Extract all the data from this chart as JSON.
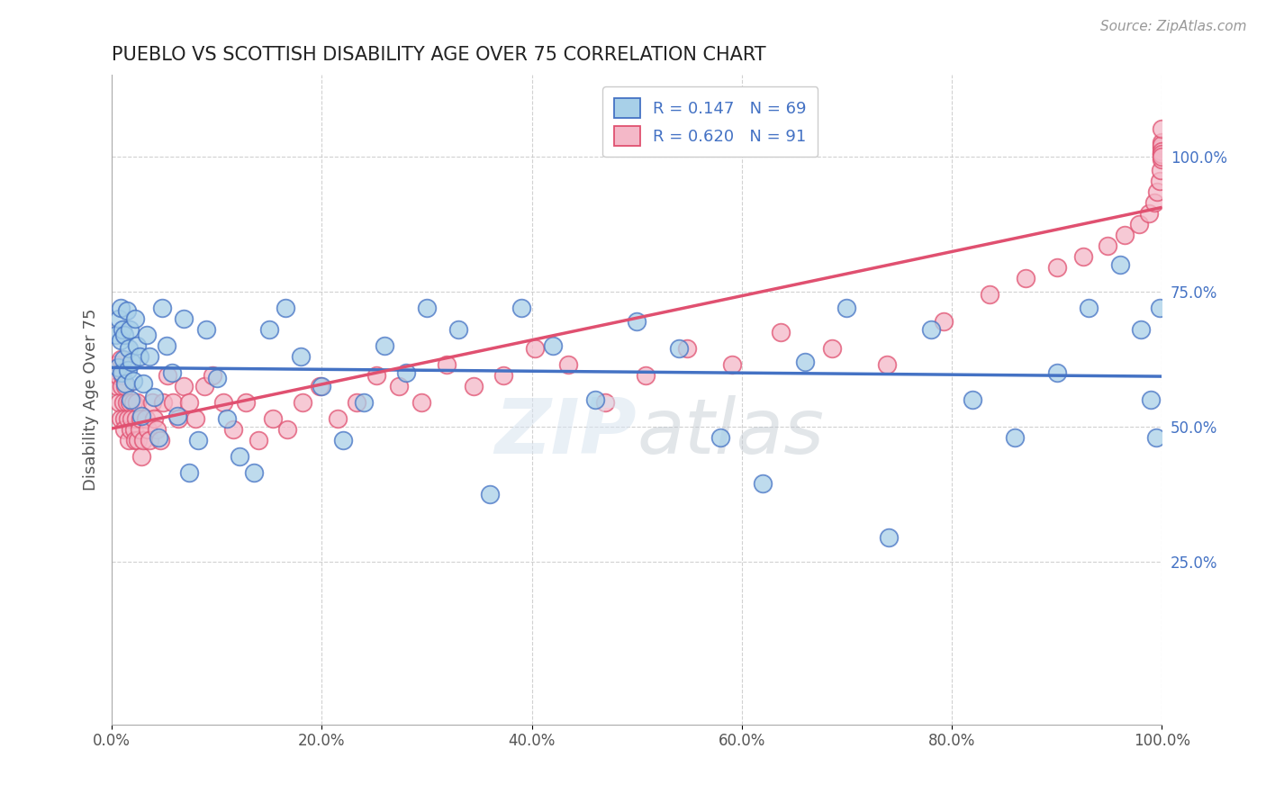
{
  "title": "PUEBLO VS SCOTTISH DISABILITY AGE OVER 75 CORRELATION CHART",
  "source_text": "Source: ZipAtlas.com",
  "ylabel": "Disability Age Over 75",
  "pueblo_R": 0.147,
  "pueblo_N": 69,
  "scottish_R": 0.62,
  "scottish_N": 91,
  "pueblo_color": "#a8d0e8",
  "scottish_color": "#f4b8c8",
  "pueblo_edge_color": "#4472c4",
  "scottish_edge_color": "#e05070",
  "pueblo_line_color": "#4472c4",
  "scottish_line_color": "#e05070",
  "background_color": "#ffffff",
  "grid_color": "#cccccc",
  "xlim": [
    0.0,
    1.0
  ],
  "ylim_min": -0.05,
  "ylim_max": 1.15,
  "ytick_positions": [
    0.25,
    0.5,
    0.75,
    1.0
  ],
  "ytick_labels": [
    "25.0%",
    "50.0%",
    "75.0%",
    "100.0%"
  ],
  "xtick_positions": [
    0.0,
    0.2,
    0.4,
    0.6,
    0.8,
    1.0
  ],
  "xtick_labels": [
    "0.0%",
    "20.0%",
    "40.0%",
    "60.0%",
    "80.0%",
    "100.0%"
  ],
  "pueblo_x": [
    0.004,
    0.006,
    0.007,
    0.008,
    0.008,
    0.009,
    0.01,
    0.011,
    0.012,
    0.013,
    0.014,
    0.015,
    0.016,
    0.017,
    0.018,
    0.019,
    0.02,
    0.022,
    0.024,
    0.026,
    0.028,
    0.03,
    0.033,
    0.036,
    0.04,
    0.044,
    0.048,
    0.052,
    0.057,
    0.062,
    0.068,
    0.074,
    0.082,
    0.09,
    0.1,
    0.11,
    0.122,
    0.135,
    0.15,
    0.165,
    0.18,
    0.2,
    0.22,
    0.24,
    0.26,
    0.28,
    0.3,
    0.33,
    0.36,
    0.39,
    0.42,
    0.46,
    0.5,
    0.54,
    0.58,
    0.62,
    0.66,
    0.7,
    0.74,
    0.78,
    0.82,
    0.86,
    0.9,
    0.93,
    0.96,
    0.98,
    0.99,
    0.995,
    0.998
  ],
  "pueblo_y": [
    0.67,
    0.61,
    0.7,
    0.72,
    0.66,
    0.6,
    0.68,
    0.625,
    0.67,
    0.58,
    0.715,
    0.605,
    0.645,
    0.68,
    0.55,
    0.62,
    0.585,
    0.7,
    0.65,
    0.63,
    0.52,
    0.58,
    0.67,
    0.63,
    0.555,
    0.48,
    0.72,
    0.65,
    0.6,
    0.52,
    0.7,
    0.415,
    0.475,
    0.68,
    0.59,
    0.515,
    0.445,
    0.415,
    0.68,
    0.72,
    0.63,
    0.575,
    0.475,
    0.545,
    0.65,
    0.6,
    0.72,
    0.68,
    0.375,
    0.72,
    0.65,
    0.55,
    0.695,
    0.645,
    0.48,
    0.395,
    0.62,
    0.72,
    0.295,
    0.68,
    0.55,
    0.48,
    0.6,
    0.72,
    0.8,
    0.68,
    0.55,
    0.48,
    0.72
  ],
  "scottish_x": [
    0.004,
    0.005,
    0.006,
    0.007,
    0.008,
    0.008,
    0.009,
    0.01,
    0.011,
    0.012,
    0.012,
    0.013,
    0.014,
    0.015,
    0.016,
    0.017,
    0.018,
    0.019,
    0.02,
    0.021,
    0.022,
    0.023,
    0.024,
    0.025,
    0.026,
    0.027,
    0.028,
    0.03,
    0.032,
    0.034,
    0.036,
    0.038,
    0.04,
    0.043,
    0.046,
    0.049,
    0.053,
    0.058,
    0.063,
    0.068,
    0.074,
    0.08,
    0.088,
    0.096,
    0.106,
    0.116,
    0.128,
    0.14,
    0.153,
    0.167,
    0.182,
    0.198,
    0.215,
    0.233,
    0.252,
    0.273,
    0.295,
    0.319,
    0.345,
    0.373,
    0.403,
    0.435,
    0.47,
    0.508,
    0.548,
    0.591,
    0.637,
    0.686,
    0.738,
    0.792,
    0.836,
    0.87,
    0.9,
    0.925,
    0.948,
    0.965,
    0.978,
    0.988,
    0.993,
    0.996,
    0.998,
    0.999,
    1.0,
    1.0,
    1.0,
    1.0,
    1.0,
    1.0,
    1.0,
    1.0,
    1.0
  ],
  "scottish_y": [
    0.615,
    0.575,
    0.595,
    0.545,
    0.515,
    0.625,
    0.575,
    0.595,
    0.545,
    0.515,
    0.495,
    0.575,
    0.545,
    0.515,
    0.475,
    0.545,
    0.495,
    0.515,
    0.545,
    0.495,
    0.475,
    0.515,
    0.545,
    0.475,
    0.495,
    0.515,
    0.445,
    0.475,
    0.515,
    0.495,
    0.475,
    0.545,
    0.515,
    0.495,
    0.475,
    0.545,
    0.595,
    0.545,
    0.515,
    0.575,
    0.545,
    0.515,
    0.575,
    0.595,
    0.545,
    0.495,
    0.545,
    0.475,
    0.515,
    0.495,
    0.545,
    0.575,
    0.515,
    0.545,
    0.595,
    0.575,
    0.545,
    0.615,
    0.575,
    0.595,
    0.645,
    0.615,
    0.545,
    0.595,
    0.645,
    0.615,
    0.675,
    0.645,
    0.615,
    0.695,
    0.745,
    0.775,
    0.795,
    0.815,
    0.835,
    0.855,
    0.875,
    0.895,
    0.915,
    0.935,
    0.955,
    0.975,
    0.995,
    1.005,
    1.015,
    1.025,
    1.02,
    1.01,
    1.005,
    1.0,
    1.05
  ],
  "marker_size": 200,
  "line_width": 2.5,
  "legend_value_color": "#4472c4"
}
